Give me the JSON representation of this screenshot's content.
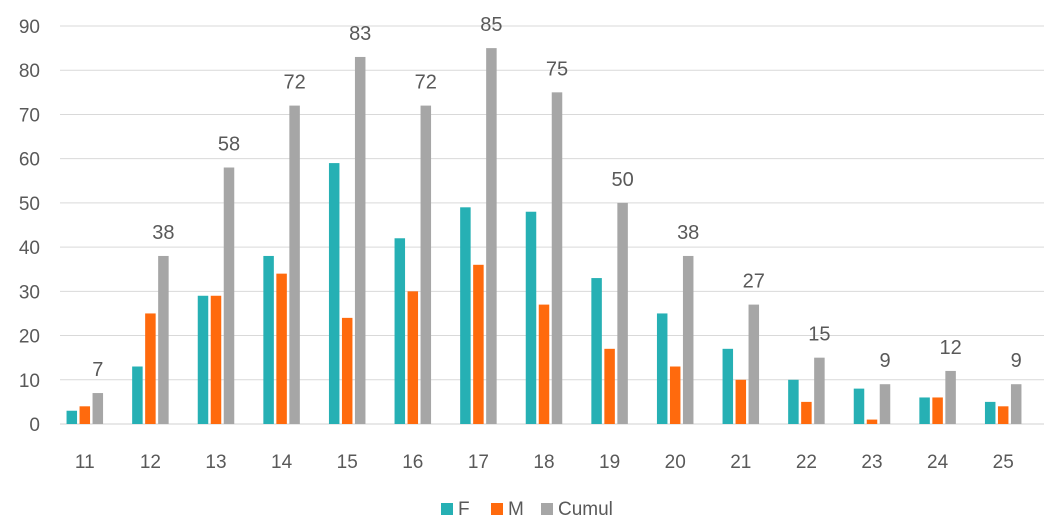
{
  "chart_data": {
    "type": "bar",
    "categories": [
      "11",
      "12",
      "13",
      "14",
      "15",
      "16",
      "17",
      "18",
      "19",
      "20",
      "21",
      "22",
      "23",
      "24",
      "25"
    ],
    "series": [
      {
        "name": "F",
        "color": "#26B0B4",
        "values": [
          3,
          13,
          29,
          38,
          59,
          42,
          49,
          48,
          33,
          25,
          17,
          10,
          8,
          6,
          5
        ]
      },
      {
        "name": "M",
        "color": "#FF6A0D",
        "values": [
          4,
          25,
          29,
          34,
          24,
          30,
          36,
          27,
          17,
          13,
          10,
          5,
          1,
          6,
          4
        ]
      },
      {
        "name": "Cumul",
        "color": "#A6A6A6",
        "values": [
          7,
          38,
          58,
          72,
          83,
          72,
          85,
          75,
          50,
          38,
          27,
          15,
          9,
          12,
          9
        ]
      }
    ],
    "data_labels_series": "Cumul",
    "ylim": [
      0,
      90
    ],
    "y_ticks": [
      0,
      10,
      20,
      30,
      40,
      50,
      60,
      70,
      80,
      90
    ],
    "grid": true,
    "legend_position": "bottom"
  }
}
